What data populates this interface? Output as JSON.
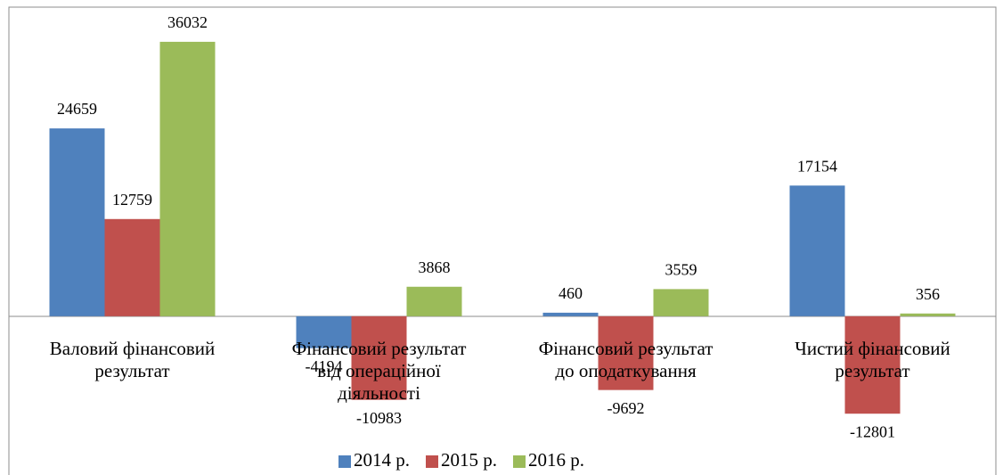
{
  "chart_data": {
    "type": "bar",
    "categories": [
      "Валовий фінансовий\nрезультат",
      "Фінансовий результат\nвід операційної\nдіяльності",
      "Фінансовий результат\nдо оподаткування",
      "Чистий фінансовий\nрезультат"
    ],
    "series": [
      {
        "name": "2014 р.",
        "color": "#4f81bd",
        "values": [
          24659,
          -4194,
          460,
          17154
        ]
      },
      {
        "name": "2015 р.",
        "color": "#c0504d",
        "values": [
          12759,
          -10983,
          -9692,
          -12801
        ]
      },
      {
        "name": "2016 р.",
        "color": "#9bbb59",
        "values": [
          36032,
          3868,
          3559,
          356
        ]
      }
    ],
    "ylim": [
      -15000,
      40000
    ],
    "legend": "bottom"
  }
}
